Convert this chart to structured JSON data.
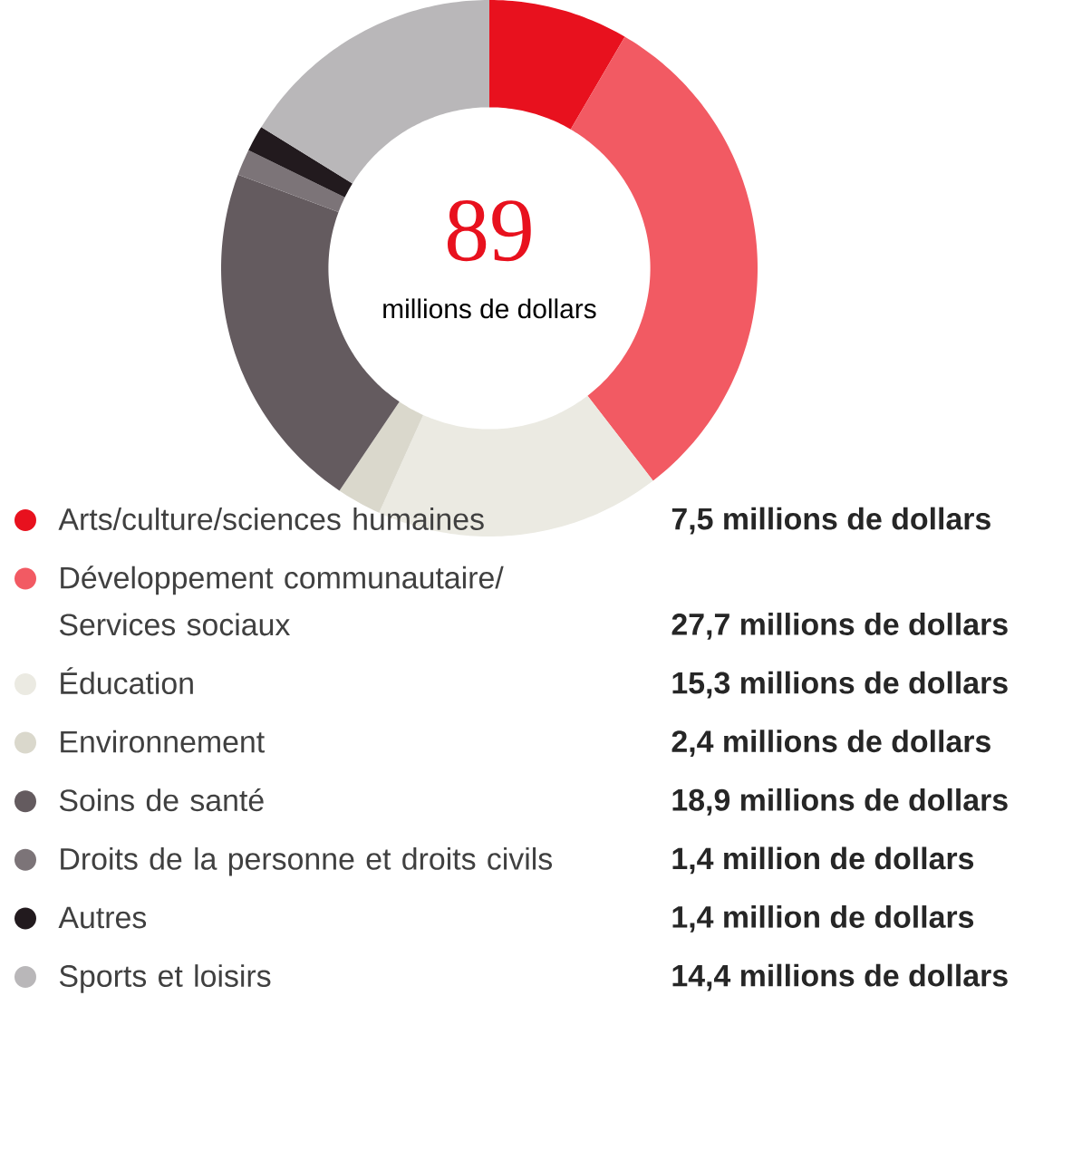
{
  "chart_data": {
    "type": "donut",
    "categories": [
      "Arts/culture/sciences humaines",
      "Développement communautaire/ Services sociaux",
      "Éducation",
      "Environnement",
      "Soins de santé",
      "Droits de la personne et droits civils",
      "Autres",
      "Sports et loisirs"
    ],
    "values": [
      7.5,
      27.7,
      15.3,
      2.4,
      18.9,
      1.4,
      1.4,
      14.4
    ],
    "colors": [
      "#e8111e",
      "#f25a63",
      "#ebeae2",
      "#dad8cc",
      "#645b5f",
      "#7c7478",
      "#221a1e",
      "#b9b7b9"
    ],
    "value_labels": [
      "7,5 millions de dollars",
      "27,7 millions de dollars",
      "15,3 millions de dollars",
      "2,4 millions de dollars",
      "18,9 millions de dollars",
      "1,4 million de dollars",
      "1,4 million de dollars",
      "14,4 millions de dollars"
    ],
    "annotations": [
      "89",
      "millions de dollars"
    ],
    "legend": "bottom"
  }
}
